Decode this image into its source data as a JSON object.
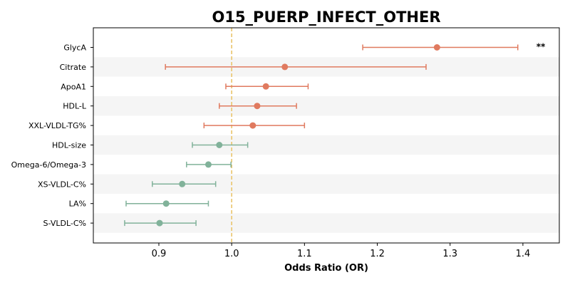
{
  "chart_data": {
    "type": "forest",
    "title": "O15_PUERP_INFECT_OTHER",
    "xlabel": "Odds Ratio (OR)",
    "xlim": [
      0.81,
      1.45
    ],
    "xticks": [
      0.9,
      1.0,
      1.1,
      1.2,
      1.3,
      1.4
    ],
    "xtick_labels": [
      "0.9",
      "1.0",
      "1.1",
      "1.2",
      "1.3",
      "1.4"
    ],
    "reference_line": 1.0,
    "colors": {
      "positive": "#e07a5f",
      "negative": "#81b29a",
      "reference": "#e9c46a",
      "stripe": "#f5f5f5"
    },
    "rows": [
      {
        "label": "GlycA",
        "or": 1.282,
        "lower": 1.18,
        "upper": 1.393,
        "sig": "**"
      },
      {
        "label": "Citrate",
        "or": 1.073,
        "lower": 0.909,
        "upper": 1.267,
        "sig": ""
      },
      {
        "label": "ApoA1",
        "or": 1.047,
        "lower": 0.992,
        "upper": 1.105,
        "sig": ""
      },
      {
        "label": "HDL-L",
        "or": 1.035,
        "lower": 0.983,
        "upper": 1.089,
        "sig": ""
      },
      {
        "label": "XXL-VLDL-TG%",
        "or": 1.029,
        "lower": 0.962,
        "upper": 1.1,
        "sig": ""
      },
      {
        "label": "HDL-size",
        "or": 0.983,
        "lower": 0.946,
        "upper": 1.022,
        "sig": ""
      },
      {
        "label": "Omega-6/Omega-3",
        "or": 0.968,
        "lower": 0.938,
        "upper": 0.999,
        "sig": ""
      },
      {
        "label": "XS-VLDL-C%",
        "or": 0.932,
        "lower": 0.891,
        "upper": 0.978,
        "sig": ""
      },
      {
        "label": "LA%",
        "or": 0.91,
        "lower": 0.855,
        "upper": 0.968,
        "sig": ""
      },
      {
        "label": "S-VLDL-C%",
        "or": 0.901,
        "lower": 0.853,
        "upper": 0.951,
        "sig": ""
      }
    ]
  }
}
